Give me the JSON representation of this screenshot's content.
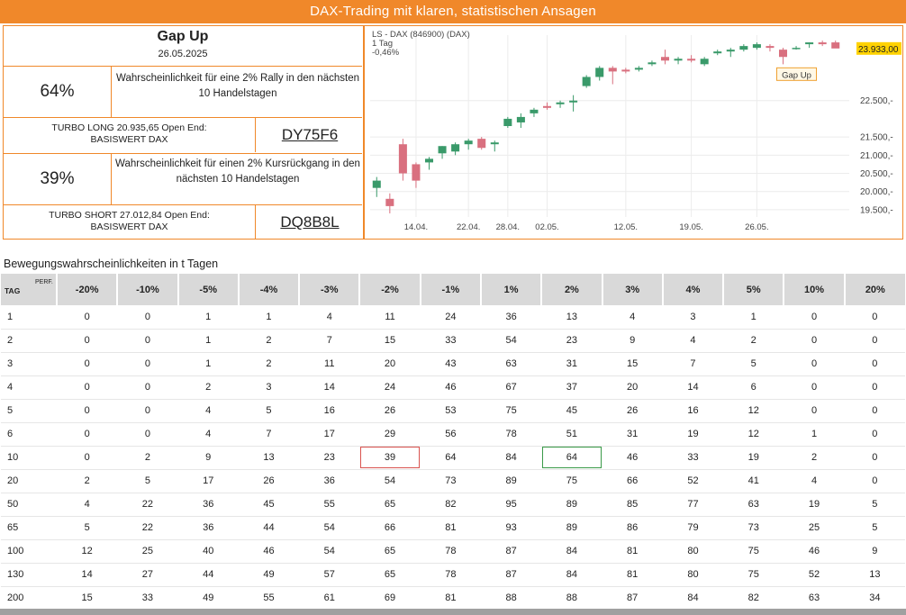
{
  "banner": "DAX-Trading mit klaren, statistischen Ansagen",
  "signal": {
    "title": "Gap Up",
    "date": "26.05.2025",
    "long_pct": "64%",
    "long_desc": "Wahrscheinlichkeit für eine 2% Rally in den nächsten 10 Handelstagen",
    "turbo_long_line1": "TURBO LONG 20.935,65 Open End:",
    "turbo_long_line2": "BASISWERT DAX",
    "turbo_long_wkn": "DY75F6",
    "short_pct": "39%",
    "short_desc": "Wahrscheinlichkeit für einen 2% Kursrückgang in den nächsten 10 Handelstagen",
    "turbo_short_line1": "TURBO SHORT 27.012,84 Open End:",
    "turbo_short_line2": "BASISWERT DAX",
    "turbo_short_wkn": "DQ8B8L"
  },
  "chart_data": {
    "type": "candlestick",
    "header_line1": "LS - DAX (846900) (DAX)",
    "header_line2": "1 Tag",
    "header_line3": "-0,46%",
    "last_price_label": "23.933,00",
    "annotation": "Gap Up",
    "y_ticks": [
      {
        "value": 22500,
        "label": "22.500,-"
      },
      {
        "value": 21500,
        "label": "21.500,-"
      },
      {
        "value": 21000,
        "label": "21.000,-"
      },
      {
        "value": 20500,
        "label": "20.500,-"
      },
      {
        "value": 20000,
        "label": "20.000,-"
      },
      {
        "value": 19500,
        "label": "19.500,-"
      }
    ],
    "x_ticks": [
      {
        "index": 3,
        "label": "14.04."
      },
      {
        "index": 7,
        "label": "22.04."
      },
      {
        "index": 10,
        "label": "28.04."
      },
      {
        "index": 13,
        "label": "02.05."
      },
      {
        "index": 19,
        "label": "12.05."
      },
      {
        "index": 24,
        "label": "19.05."
      },
      {
        "index": 29,
        "label": "26.05."
      }
    ],
    "colors": {
      "up": "#3a9a6a",
      "down": "#d9707f",
      "last_price_bg": "#ffd200",
      "annotation_border": "#f0a030",
      "grid": "#ececec"
    },
    "candles": [
      {
        "o": 20100,
        "h": 20400,
        "l": 19850,
        "c": 20300
      },
      {
        "o": 19800,
        "h": 19950,
        "l": 19400,
        "c": 19600
      },
      {
        "o": 21300,
        "h": 21450,
        "l": 20300,
        "c": 20500
      },
      {
        "o": 20750,
        "h": 20800,
        "l": 20100,
        "c": 20300
      },
      {
        "o": 20800,
        "h": 20950,
        "l": 20600,
        "c": 20900
      },
      {
        "o": 21050,
        "h": 21250,
        "l": 20900,
        "c": 21250
      },
      {
        "o": 21100,
        "h": 21350,
        "l": 21000,
        "c": 21300
      },
      {
        "o": 21300,
        "h": 21450,
        "l": 21150,
        "c": 21400
      },
      {
        "o": 21450,
        "h": 21500,
        "l": 21150,
        "c": 21200
      },
      {
        "o": 21300,
        "h": 21400,
        "l": 21100,
        "c": 21350
      },
      {
        "o": 21800,
        "h": 22050,
        "l": 21750,
        "c": 22000
      },
      {
        "o": 21900,
        "h": 22150,
        "l": 21750,
        "c": 22050
      },
      {
        "o": 22150,
        "h": 22300,
        "l": 22050,
        "c": 22250
      },
      {
        "o": 22350,
        "h": 22450,
        "l": 22250,
        "c": 22300
      },
      {
        "o": 22400,
        "h": 22500,
        "l": 22300,
        "c": 22450
      },
      {
        "o": 22450,
        "h": 22650,
        "l": 22200,
        "c": 22500
      },
      {
        "o": 22900,
        "h": 23200,
        "l": 22850,
        "c": 23150
      },
      {
        "o": 23150,
        "h": 23450,
        "l": 23050,
        "c": 23400
      },
      {
        "o": 23400,
        "h": 23450,
        "l": 22950,
        "c": 23300
      },
      {
        "o": 23350,
        "h": 23400,
        "l": 23250,
        "c": 23300
      },
      {
        "o": 23350,
        "h": 23450,
        "l": 23300,
        "c": 23400
      },
      {
        "o": 23500,
        "h": 23600,
        "l": 23450,
        "c": 23550
      },
      {
        "o": 23700,
        "h": 23900,
        "l": 23500,
        "c": 23600
      },
      {
        "o": 23600,
        "h": 23700,
        "l": 23500,
        "c": 23650
      },
      {
        "o": 23650,
        "h": 23750,
        "l": 23550,
        "c": 23600
      },
      {
        "o": 23500,
        "h": 23700,
        "l": 23450,
        "c": 23650
      },
      {
        "o": 23800,
        "h": 23900,
        "l": 23750,
        "c": 23850
      },
      {
        "o": 23850,
        "h": 23950,
        "l": 23700,
        "c": 23900
      },
      {
        "o": 23900,
        "h": 24050,
        "l": 23850,
        "c": 24000
      },
      {
        "o": 23950,
        "h": 24100,
        "l": 23900,
        "c": 24050
      },
      {
        "o": 24000,
        "h": 24050,
        "l": 23850,
        "c": 23950
      },
      {
        "o": 23900,
        "h": 23950,
        "l": 23500,
        "c": 23700
      },
      {
        "o": 23950,
        "h": 24000,
        "l": 23900,
        "c": 23950
      },
      {
        "o": 24050,
        "h": 24100,
        "l": 23950,
        "c": 24100
      },
      {
        "o": 24100,
        "h": 24150,
        "l": 24000,
        "c": 24050
      },
      {
        "o": 24100,
        "h": 24150,
        "l": 23950,
        "c": 23933
      }
    ]
  },
  "movement_table": {
    "caption": "Bewegungswahrscheinlichkeiten in t Tagen",
    "corner_tag": "TAG",
    "corner_perf": "PERF.",
    "columns": [
      "-20%",
      "-10%",
      "-5%",
      "-4%",
      "-3%",
      "-2%",
      "-1%",
      "1%",
      "2%",
      "3%",
      "4%",
      "5%",
      "10%",
      "20%"
    ],
    "rows": [
      {
        "tag": "1",
        "values": [
          "0",
          "0",
          "1",
          "1",
          "4",
          "11",
          "24",
          "36",
          "13",
          "4",
          "3",
          "1",
          "0",
          "0"
        ]
      },
      {
        "tag": "2",
        "values": [
          "0",
          "0",
          "1",
          "2",
          "7",
          "15",
          "33",
          "54",
          "23",
          "9",
          "4",
          "2",
          "0",
          "0"
        ]
      },
      {
        "tag": "3",
        "values": [
          "0",
          "0",
          "1",
          "2",
          "11",
          "20",
          "43",
          "63",
          "31",
          "15",
          "7",
          "5",
          "0",
          "0"
        ]
      },
      {
        "tag": "4",
        "values": [
          "0",
          "0",
          "2",
          "3",
          "14",
          "24",
          "46",
          "67",
          "37",
          "20",
          "14",
          "6",
          "0",
          "0"
        ]
      },
      {
        "tag": "5",
        "values": [
          "0",
          "0",
          "4",
          "5",
          "16",
          "26",
          "53",
          "75",
          "45",
          "26",
          "16",
          "12",
          "0",
          "0"
        ]
      },
      {
        "tag": "6",
        "values": [
          "0",
          "0",
          "4",
          "7",
          "17",
          "29",
          "56",
          "78",
          "51",
          "31",
          "19",
          "12",
          "1",
          "0"
        ]
      },
      {
        "tag": "10",
        "values": [
          "0",
          "2",
          "9",
          "13",
          "23",
          "39",
          "64",
          "84",
          "64",
          "46",
          "33",
          "19",
          "2",
          "0"
        ]
      },
      {
        "tag": "20",
        "values": [
          "2",
          "5",
          "17",
          "26",
          "36",
          "54",
          "73",
          "89",
          "75",
          "66",
          "52",
          "41",
          "4",
          "0"
        ]
      },
      {
        "tag": "50",
        "values": [
          "4",
          "22",
          "36",
          "45",
          "55",
          "65",
          "82",
          "95",
          "89",
          "85",
          "77",
          "63",
          "19",
          "5"
        ]
      },
      {
        "tag": "65",
        "values": [
          "5",
          "22",
          "36",
          "44",
          "54",
          "66",
          "81",
          "93",
          "89",
          "86",
          "79",
          "73",
          "25",
          "5"
        ]
      },
      {
        "tag": "100",
        "values": [
          "12",
          "25",
          "40",
          "46",
          "54",
          "65",
          "78",
          "87",
          "84",
          "81",
          "80",
          "75",
          "46",
          "9"
        ]
      },
      {
        "tag": "130",
        "values": [
          "14",
          "27",
          "44",
          "49",
          "57",
          "65",
          "78",
          "87",
          "84",
          "81",
          "80",
          "75",
          "52",
          "13"
        ]
      },
      {
        "tag": "200",
        "values": [
          "15",
          "33",
          "49",
          "55",
          "61",
          "69",
          "81",
          "88",
          "88",
          "87",
          "84",
          "82",
          "63",
          "34"
        ]
      }
    ],
    "highlight": [
      {
        "row": 6,
        "col": 5,
        "color": "red"
      },
      {
        "row": 6,
        "col": 8,
        "color": "green"
      }
    ]
  }
}
